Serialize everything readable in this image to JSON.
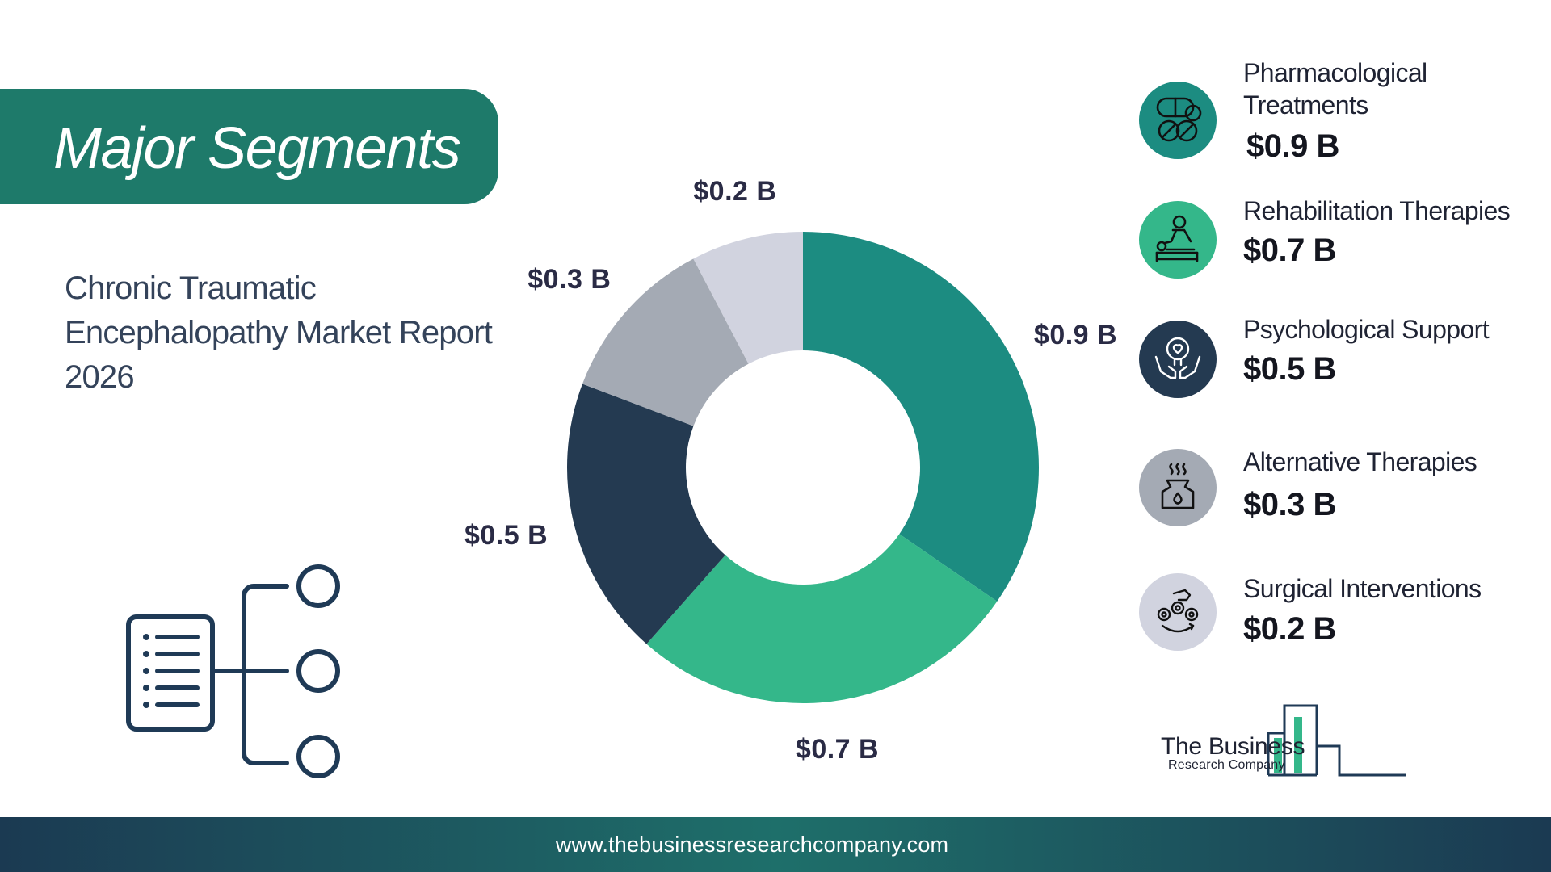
{
  "header": {
    "title": "Major Segments"
  },
  "report_title": [
    "Chronic Traumatic",
    "Encephalopathy Market Report",
    "2026"
  ],
  "chart_data": {
    "type": "pie",
    "style": "donut",
    "unit": "$ B",
    "categories": [
      "Pharmacological Treatments",
      "Rehabilitation Therapies",
      "Psychological Support",
      "Alternative Therapies",
      "Surgical Interventions"
    ],
    "values": [
      0.9,
      0.7,
      0.5,
      0.3,
      0.2
    ],
    "labels": [
      "$0.9 B",
      "$0.7 B",
      "$0.5 B",
      "$0.3 B",
      "$0.2 B"
    ],
    "colors": [
      "#1c8c81",
      "#34b78a",
      "#243a51",
      "#a4aab4",
      "#d1d3df"
    ]
  },
  "legend": [
    {
      "name": "Pharmacological Treatments",
      "value": "$0.9 B",
      "icon": "pills-icon",
      "color": "#1c8c81"
    },
    {
      "name": "Rehabilitation Therapies",
      "value": "$0.7 B",
      "icon": "massage-therapy-icon",
      "color": "#34b78a"
    },
    {
      "name": "Psychological Support",
      "value": "$0.5 B",
      "icon": "mental-health-hands-icon",
      "color": "#243a51"
    },
    {
      "name": "Alternative Therapies",
      "value": "$0.3 B",
      "icon": "aroma-diffuser-icon",
      "color": "#a4aab4"
    },
    {
      "name": "Surgical Interventions",
      "value": "$0.2 B",
      "icon": "gears-hand-icon",
      "color": "#d1d3df"
    }
  ],
  "brand": {
    "name": "The Business",
    "sub": "Research Company"
  },
  "footer": {
    "url": "www.thebusinessresearchcompany.com"
  }
}
